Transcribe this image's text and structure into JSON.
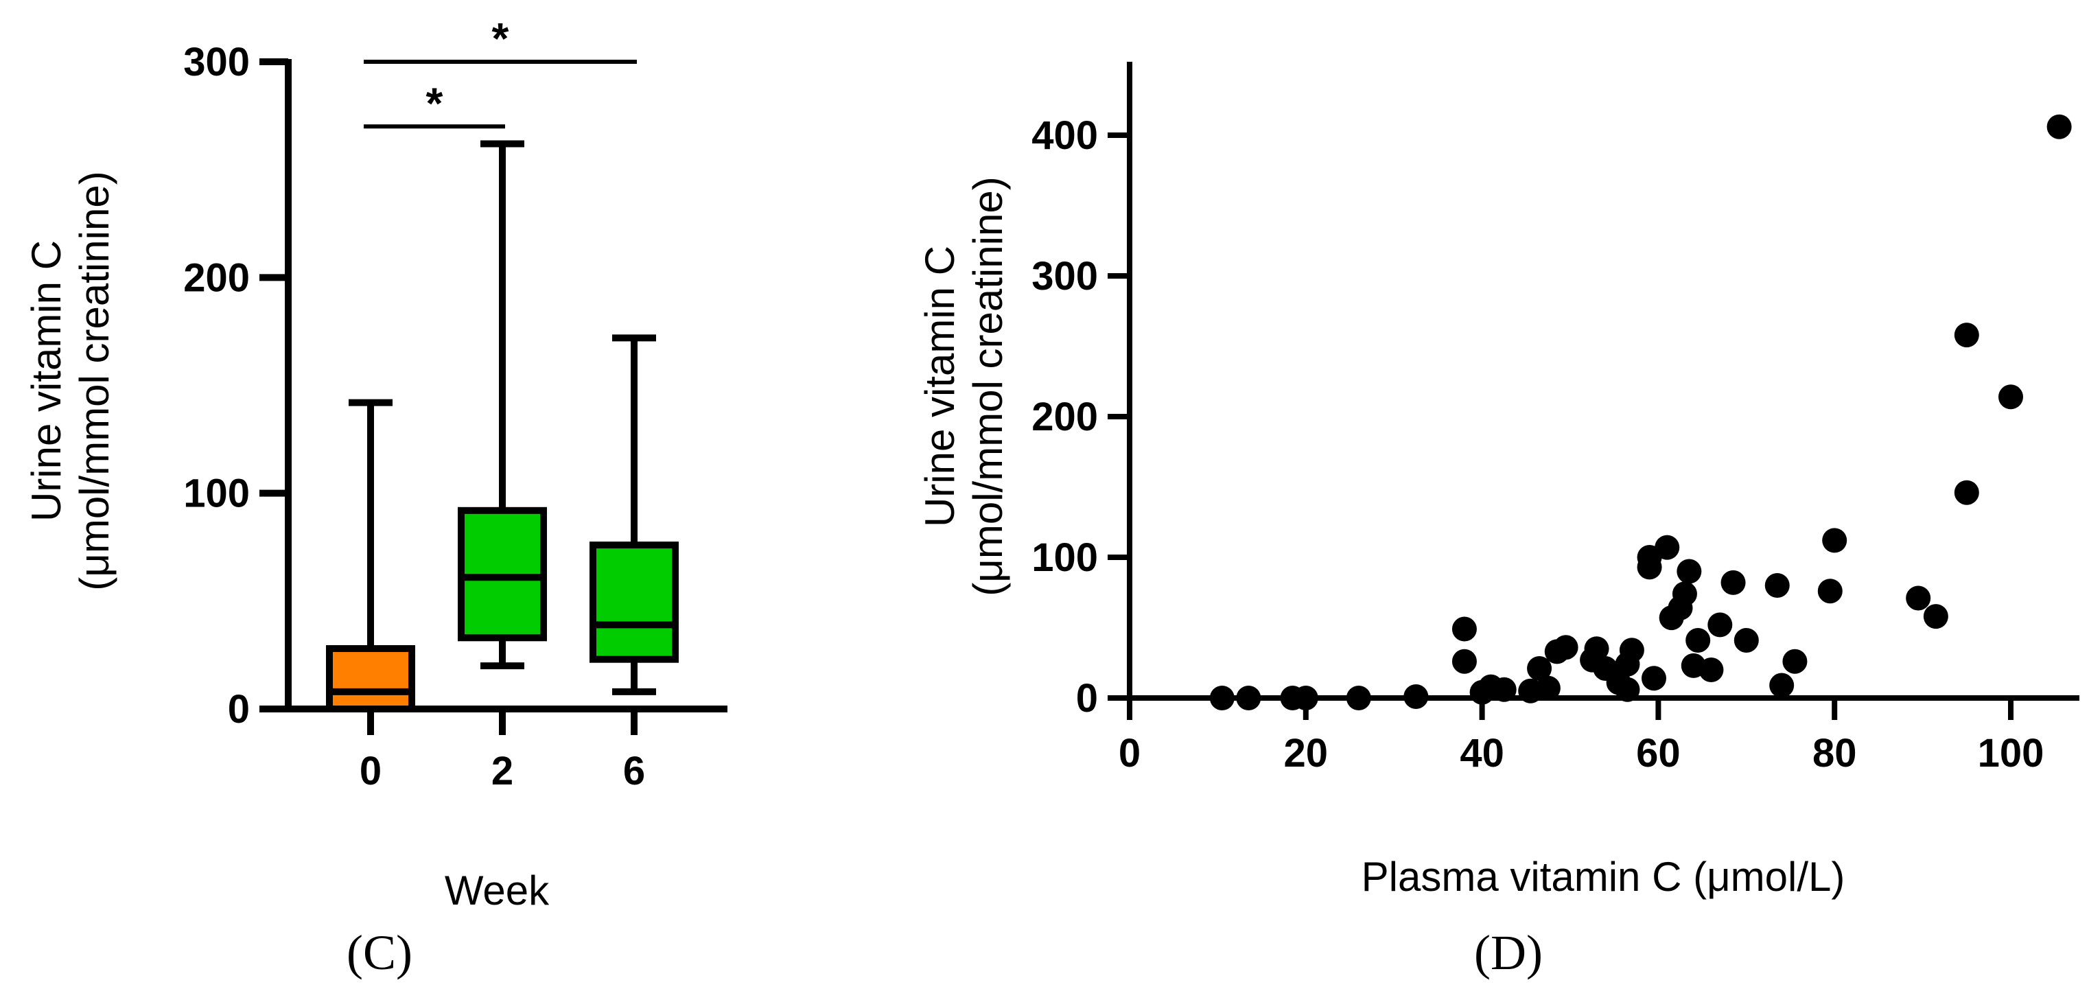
{
  "chart_data": [
    {
      "type": "box",
      "panel_label": "(C)",
      "xlabel": "Week",
      "ylabel_line1": "Urine vitamin C",
      "ylabel_line2": "(μmol/mmol creatinine)",
      "ylim": [
        0,
        300
      ],
      "yticks": [
        0,
        100,
        200,
        300
      ],
      "categories": [
        "0",
        "2",
        "6"
      ],
      "boxes": [
        {
          "category": "0",
          "min": 0,
          "q1": 0,
          "median": 8,
          "q3": 28,
          "max": 142,
          "color": "#ff8000"
        },
        {
          "category": "2",
          "min": 20,
          "q1": 33,
          "median": 61,
          "q3": 92,
          "max": 262,
          "color": "#00cc00"
        },
        {
          "category": "6",
          "min": 8,
          "q1": 23,
          "median": 39,
          "q3": 76,
          "max": 172,
          "color": "#00cc00"
        }
      ],
      "significance": [
        {
          "from": "0",
          "to": "2",
          "y": 270,
          "label": "*"
        },
        {
          "from": "0",
          "to": "6",
          "y": 300,
          "label": "*"
        }
      ]
    },
    {
      "type": "scatter",
      "panel_label": "(D)",
      "xlabel": "Plasma vitamin C (μmol/L)",
      "ylabel_line1": "Urine vitamin C",
      "ylabel_line2": "(μmol/mmol creatinine)",
      "xlim": [
        0,
        110
      ],
      "ylim": [
        0,
        450
      ],
      "xticks": [
        0,
        20,
        40,
        60,
        80,
        100
      ],
      "yticks": [
        0,
        100,
        200,
        300,
        400
      ],
      "marker_color": "#000000",
      "points": [
        [
          10.5,
          0
        ],
        [
          13.5,
          0
        ],
        [
          18.5,
          0
        ],
        [
          20,
          0
        ],
        [
          26,
          0
        ],
        [
          32.5,
          1
        ],
        [
          38,
          49
        ],
        [
          38,
          26
        ],
        [
          40,
          4
        ],
        [
          41,
          8
        ],
        [
          42.5,
          6
        ],
        [
          45.5,
          5
        ],
        [
          46.5,
          21
        ],
        [
          47.5,
          7
        ],
        [
          48.5,
          33
        ],
        [
          49.5,
          36
        ],
        [
          52.5,
          27
        ],
        [
          53,
          35
        ],
        [
          54,
          21
        ],
        [
          55.5,
          11
        ],
        [
          56.5,
          6
        ],
        [
          56.5,
          24
        ],
        [
          57,
          34
        ],
        [
          59,
          100
        ],
        [
          59,
          93
        ],
        [
          59.5,
          14
        ],
        [
          61,
          107
        ],
        [
          61.5,
          57
        ],
        [
          62.5,
          64
        ],
        [
          63,
          74
        ],
        [
          63.5,
          90
        ],
        [
          64,
          23
        ],
        [
          64.5,
          41
        ],
        [
          66,
          20
        ],
        [
          67,
          52
        ],
        [
          68.5,
          82
        ],
        [
          70,
          41
        ],
        [
          73.5,
          80
        ],
        [
          74,
          9
        ],
        [
          75.5,
          26
        ],
        [
          79.5,
          76
        ],
        [
          80,
          112
        ],
        [
          89.5,
          71
        ],
        [
          91.5,
          58
        ],
        [
          95,
          258
        ],
        [
          95,
          146
        ],
        [
          100,
          214
        ],
        [
          105.5,
          406
        ]
      ]
    }
  ]
}
